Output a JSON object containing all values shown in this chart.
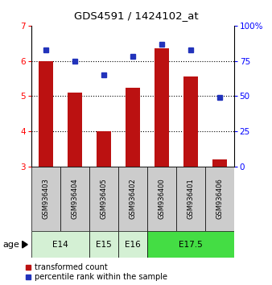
{
  "title": "GDS4591 / 1424102_at",
  "samples": [
    "GSM936403",
    "GSM936404",
    "GSM936405",
    "GSM936402",
    "GSM936400",
    "GSM936401",
    "GSM936406"
  ],
  "transformed_count": [
    6.0,
    5.1,
    4.0,
    5.25,
    6.35,
    5.55,
    3.2
  ],
  "percentile_rank": [
    83,
    75,
    65,
    78,
    87,
    83,
    49
  ],
  "age_groups": [
    {
      "label": "E14",
      "start": 0,
      "end": 2,
      "color": "#d4f0d4"
    },
    {
      "label": "E15",
      "start": 2,
      "end": 3,
      "color": "#d4f0d4"
    },
    {
      "label": "E16",
      "start": 3,
      "end": 4,
      "color": "#d4f0d4"
    },
    {
      "label": "E17.5",
      "start": 4,
      "end": 7,
      "color": "#44dd44"
    }
  ],
  "ylim_left": [
    3,
    7
  ],
  "ylim_right": [
    0,
    100
  ],
  "yticks_left": [
    3,
    4,
    5,
    6,
    7
  ],
  "yticks_right": [
    0,
    25,
    50,
    75,
    100
  ],
  "ytick_labels_right": [
    "0",
    "25",
    "50",
    "75",
    "100%"
  ],
  "grid_lines": [
    4,
    5,
    6
  ],
  "bar_color": "#bb1111",
  "dot_color": "#2233bb",
  "bar_width": 0.5,
  "legend_bar_label": "transformed count",
  "legend_dot_label": "percentile rank within the sample",
  "age_label": "age",
  "background_color": "#ffffff"
}
